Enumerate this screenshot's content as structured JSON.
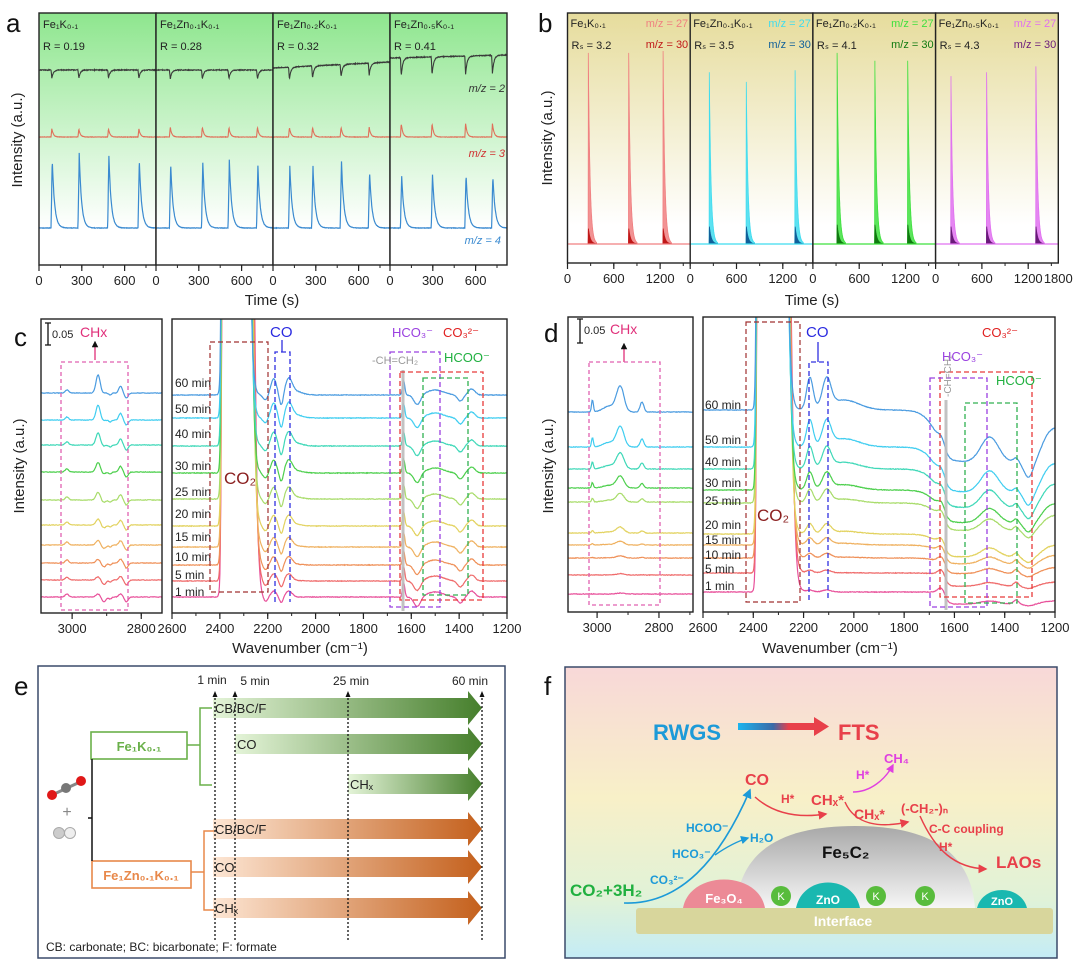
{
  "panel_labels": {
    "a": "a",
    "b": "b",
    "c": "c",
    "d": "d",
    "e": "e",
    "f": "f"
  },
  "chart_data": [
    {
      "id": "a",
      "type": "line",
      "xlabel": "Time (s)",
      "ylabel": "Intensity (a.u.)",
      "xlim": [
        0,
        820
      ],
      "xticks": [
        0,
        300,
        600
      ],
      "series": [
        {
          "name": "m/z = 2",
          "color": "#3a3a3a"
        },
        {
          "name": "m/z = 3",
          "color": "#e0705a"
        },
        {
          "name": "m/z = 4",
          "color": "#3a8ad0"
        }
      ],
      "panels": [
        {
          "sample": "Fe₁K₀.₁",
          "ratio": "R = 0.19",
          "pulse_times": [
            84,
            273,
            481,
            694
          ],
          "mz4": [
            0.91,
            1.0,
            0.96,
            0.92
          ],
          "mz3": 0.11,
          "mz2_dip": 0.11
        },
        {
          "sample": "Fe₁Zn₀.₁K₀.₁",
          "ratio": "R = 0.28",
          "pulse_times": [
            94,
            319,
            505,
            705
          ],
          "mz4": [
            0.87,
            0.87,
            0.91,
            0.83
          ],
          "mz3": 0.13,
          "mz2_dip": 0.12
        },
        {
          "sample": "Fe₁Zn₀.₂K₀.₁",
          "ratio": "R = 0.32",
          "pulse_times": [
            109,
            271,
            471,
            668
          ],
          "mz4": [
            0.83,
            0.83,
            0.89,
            0.76
          ],
          "mz3": 0.13,
          "mz2_dip": 0.16
        },
        {
          "sample": "Fe₁Zn₀.₅K₀.₁",
          "ratio": "R = 0.41",
          "pulse_times": [
            73,
            289,
            524,
            712
          ],
          "mz4": [
            0.69,
            0.71,
            0.71,
            0.69
          ],
          "mz3": 0.18,
          "mz2_dip": 0.24
        }
      ]
    },
    {
      "id": "b",
      "type": "area",
      "xlabel": "Time (s)",
      "ylabel": "Intensity (a.u.)",
      "xlim": [
        0,
        1590
      ],
      "xticks": [
        0,
        600,
        1200
      ],
      "end_tick": "1800",
      "series_names": [
        "m/z = 27",
        "m/z = 30"
      ],
      "panels": [
        {
          "sample": "Fe₁K₀.₁",
          "ratio": "Rₛ = 3.2",
          "colors": [
            "#f07f80",
            "#c01818"
          ],
          "pulse_times": [
            267,
            790,
            1236
          ],
          "mz27": [
            0.99,
            0.99,
            1.0
          ],
          "mz30": 0.08
        },
        {
          "sample": "Fe₁Zn₀.₁K₀.₁",
          "ratio": "Rₛ = 3.5",
          "colors": [
            "#3fdcef",
            "#10609a"
          ],
          "pulse_times": [
            245,
            724,
            1356
          ],
          "mz27": [
            0.89,
            0.84,
            0.9
          ],
          "mz30": 0.09
        },
        {
          "sample": "Fe₁Zn₀.₂K₀.₁",
          "ratio": "Rₛ = 4.1",
          "colors": [
            "#3ee03e",
            "#107a10"
          ],
          "pulse_times": [
            311,
            800,
            1226
          ],
          "mz27": [
            0.99,
            0.95,
            0.95
          ],
          "mz30": 0.1
        },
        {
          "sample": "Fe₁Zn₀.₅K₀.₁",
          "ratio": "Rₛ = 4.3",
          "colors": [
            "#e070f0",
            "#6a1a7a"
          ],
          "pulse_times": [
            196,
            658,
            1297
          ],
          "mz27": [
            0.87,
            0.89,
            0.92
          ],
          "mz30": 0.09
        }
      ]
    },
    {
      "id": "c",
      "type": "line",
      "xlabel": "Wavenumber (cm⁻¹)",
      "ylabel": "Intensity (a.u.)",
      "xlim_left": [
        3090,
        2740
      ],
      "xticks_left": [
        3000,
        2800
      ],
      "xlim_right": [
        2600,
        1200
      ],
      "xticks_right": [
        2600,
        2400,
        2200,
        2000,
        1800,
        1600,
        1400,
        1200
      ],
      "scale_bar": "0.05",
      "times": [
        "60 min",
        "50 min",
        "40 min",
        "30 min",
        "25 min",
        "20 min",
        "15 min",
        "10 min",
        "5 min",
        "1 min"
      ],
      "bands": {
        "chx": "CHx",
        "co": "CO",
        "co2": "CO₂",
        "hco3": "HCO₃⁻",
        "co3": "CO₃²⁻",
        "hcoo": "HCOO⁻",
        "vinyl": "-CH=CH₂"
      }
    },
    {
      "id": "d",
      "type": "line",
      "xlabel": "Wavenumber (cm⁻¹)",
      "ylabel": "Intensity (a.u.)",
      "xlim_left": [
        3094,
        2690
      ],
      "xticks_left": [
        3000,
        2800
      ],
      "xlim_right": [
        2600,
        1200
      ],
      "xticks_right": [
        2600,
        2400,
        2200,
        2000,
        1800,
        1600,
        1400,
        1200
      ],
      "scale_bar": "0.05",
      "times": [
        "60 min",
        "50 min",
        "40 min",
        "30 min",
        "25 min",
        "20 min",
        "15 min",
        "10 min",
        "5 min",
        "1 min"
      ],
      "bands": {
        "chx": "CHx",
        "co": "CO",
        "co2": "CO₂",
        "hco3": "HCO₃⁻",
        "co3": "CO₃²⁻",
        "hcoo": "HCOO⁻",
        "vinyl": "-CH=CH₂"
      }
    }
  ],
  "time_colors": [
    "#4a9be0",
    "#3fcdf0",
    "#3fd8b8",
    "#4ccf4c",
    "#a8dc6a",
    "#e2d25e",
    "#efb160",
    "#ef9058",
    "#ef6a6a",
    "#e8509a"
  ],
  "panel_e": {
    "time_marks": [
      "1 min",
      "5 min",
      "25 min",
      "60 min"
    ],
    "catalyst_1": "Fe₁K₀.₁",
    "catalyst_2": "Fe₁Zn₀.₁K₀.₁",
    "plus": "+",
    "rows_1": [
      "CB/BC/F",
      "CO",
      "CHₓ"
    ],
    "rows_2": [
      "CB/BC/F",
      "CO",
      "CHₓ"
    ],
    "caption": "CB: carbonate; BC: bicarbonate; F: formate",
    "colors": {
      "green": "#5a9a3a",
      "orange": "#e07a30"
    }
  },
  "panel_f": {
    "rwgs": "RWGS",
    "fts": "FTS",
    "co": "CO",
    "h_star_1": "H*",
    "chx_star_1": "CHₓ*",
    "ch4": "CH₄",
    "h_star_2": "H*",
    "chx_star_2": "CHₓ*",
    "ch2n": "(-CH₂-)ₙ",
    "cc_coupling": "C-C coupling",
    "h_star_3": "H*",
    "laos": "LAOs",
    "hcoo": "HCOO⁻",
    "h2o": "H₂O",
    "hco3": "HCO₃⁻",
    "co3": "CO₃²⁻",
    "reactants": "CO₂+3H₂",
    "fe5c2": "Fe₅C₂",
    "fe3o4": "Fe₃O₄",
    "k": "K",
    "zno": "ZnO",
    "interface": "Interface",
    "colors": {
      "blue": "#1c9ad8",
      "red": "#e8404a",
      "magenta": "#e040e0",
      "green": "#20b040"
    }
  }
}
